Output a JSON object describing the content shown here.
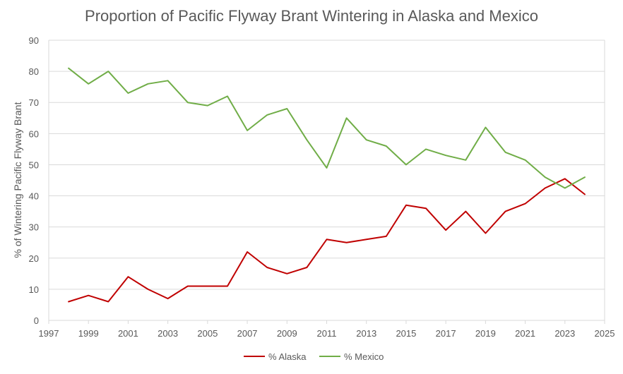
{
  "chart_data": {
    "type": "line",
    "title": "Proportion of Pacific Flyway Brant Wintering in Alaska and Mexico",
    "xlabel": "",
    "ylabel": "% of Wintering Pacific Flyway Brant",
    "xlim": [
      1997,
      2025
    ],
    "ylim": [
      0,
      90
    ],
    "x_ticks": [
      1997,
      1999,
      2001,
      2003,
      2005,
      2007,
      2009,
      2011,
      2013,
      2015,
      2017,
      2019,
      2021,
      2023,
      2025
    ],
    "y_ticks": [
      0,
      10,
      20,
      30,
      40,
      50,
      60,
      70,
      80,
      90
    ],
    "grid": true,
    "legend_position": "bottom",
    "x": [
      1998,
      1999,
      2000,
      2001,
      2002,
      2003,
      2004,
      2005,
      2006,
      2007,
      2008,
      2009,
      2010,
      2011,
      2012,
      2013,
      2014,
      2015,
      2016,
      2017,
      2018,
      2019,
      2020,
      2021,
      2022,
      2023,
      2024
    ],
    "series": [
      {
        "name": "% Alaska",
        "color": "#c00000",
        "values": [
          6,
          8,
          6,
          14,
          10,
          7,
          11,
          11,
          11,
          22,
          17,
          15,
          17,
          26,
          25,
          26,
          27,
          37,
          36,
          29,
          35,
          28,
          35,
          37.5,
          42.5,
          45.5,
          40.5
        ]
      },
      {
        "name": "% Mexico",
        "color": "#70ad47",
        "values": [
          81,
          76,
          80,
          73,
          76,
          77,
          70,
          69,
          72,
          61,
          66,
          68,
          58,
          49,
          65,
          58,
          56,
          50,
          55,
          53,
          51.5,
          62,
          54,
          51.5,
          46,
          42.5,
          46
        ]
      }
    ]
  }
}
